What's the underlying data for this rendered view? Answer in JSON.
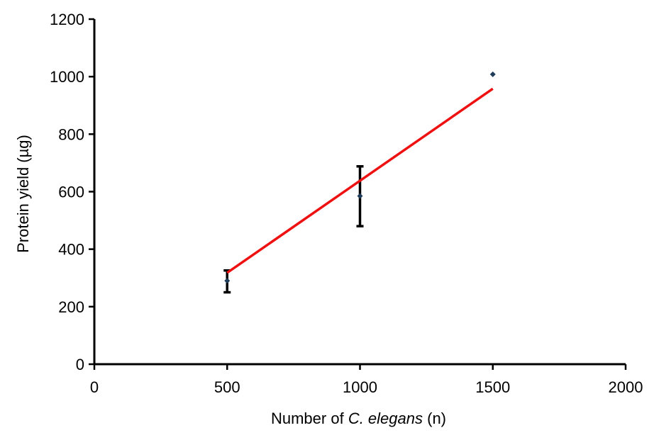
{
  "chart_data": {
    "type": "scatter",
    "title": "",
    "xlabel": {
      "prefix": "Number of ",
      "italic": "C. elegans",
      "suffix": " (n)"
    },
    "ylabel": "Protein yield (µg)",
    "xlim": [
      0,
      2000
    ],
    "ylim": [
      0,
      1200
    ],
    "xticks": [
      0,
      500,
      1000,
      1500,
      2000
    ],
    "yticks": [
      0,
      200,
      400,
      600,
      800,
      1000,
      1200
    ],
    "grid": false,
    "series": [
      {
        "x": [
          500,
          1000,
          1500
        ],
        "y": [
          290,
          585,
          1008
        ],
        "error_low": [
          250,
          480,
          1008
        ],
        "error_high": [
          326,
          688,
          1008
        ],
        "marker_color": "#1f3b5a",
        "error_color": "#000000"
      }
    ],
    "trendline": {
      "x": [
        500,
        1500
      ],
      "y": [
        318,
        958
      ],
      "color": "#ee1111"
    }
  }
}
